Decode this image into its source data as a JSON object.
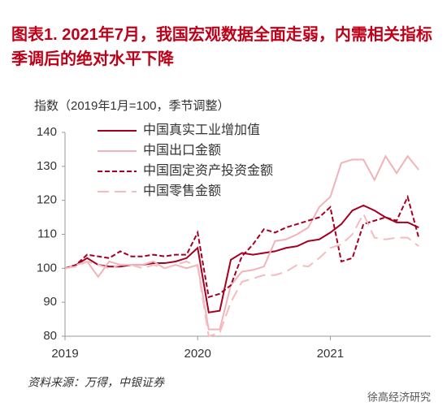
{
  "chart_data": {
    "type": "line",
    "title": "图表1.  2021年7月，我国宏观数据全面走弱，内需相关指标季调后的绝对水平下降",
    "subtitle": "指数（2019年1月=100，季节调整）",
    "source": "资料来源：万得，中银证券",
    "watermark": "徐高经济研究",
    "categories": [
      "2019",
      null,
      null,
      null,
      null,
      null,
      null,
      null,
      null,
      null,
      null,
      null,
      "2020",
      null,
      null,
      null,
      null,
      null,
      null,
      null,
      null,
      null,
      null,
      null,
      "2021",
      null,
      null,
      null,
      null,
      null,
      null,
      null,
      null
    ],
    "series": [
      {
        "name": "中国真实工业增加值",
        "color": "#a50021",
        "linestyle": "solid",
        "values": [
          100,
          101,
          103,
          101,
          100.5,
          100.5,
          101,
          101,
          101.5,
          101.5,
          102,
          103,
          106,
          87,
          87.5,
          102.5,
          104.5,
          104,
          104.5,
          105,
          106,
          106.5,
          108,
          108.5,
          110.5,
          113,
          117,
          118.5,
          117,
          115,
          113.5,
          113.5,
          112
        ]
      },
      {
        "name": "中国出口金额",
        "color": "#f0b3b8",
        "linestyle": "solid",
        "values": [
          100,
          101,
          102,
          97.5,
          102,
          101,
          101,
          101,
          102,
          100,
          101,
          100,
          101,
          82,
          82,
          95,
          99,
          99.5,
          100.5,
          108,
          108.5,
          110,
          112,
          118,
          121,
          131,
          132,
          132,
          126,
          133,
          128,
          133,
          129
        ]
      },
      {
        "name": "中国固定资产投资金额",
        "color": "#a50021",
        "linestyle": "dashed",
        "values": [
          100,
          101,
          104,
          103.5,
          103,
          105,
          103.5,
          103.5,
          104,
          103.5,
          104,
          104,
          110.5,
          91.5,
          92.5,
          95,
          103.5,
          107,
          111.5,
          110.5,
          112,
          113,
          114,
          115,
          118,
          102,
          103,
          113,
          114,
          115,
          114,
          121,
          109
        ]
      },
      {
        "name": "中国零售金额",
        "color": "#f5bcc0",
        "linestyle": "long-dashed",
        "values": [
          100,
          100.5,
          102,
          101,
          100,
          101,
          101,
          100,
          101,
          100,
          101,
          102,
          100.5,
          80,
          81,
          90,
          96,
          97,
          98,
          98,
          99,
          101,
          100.5,
          103,
          106,
          107,
          110,
          116,
          109,
          108.5,
          109,
          109,
          106.5
        ]
      }
    ],
    "ylim": [
      80,
      140
    ],
    "yticks": [
      80,
      90,
      100,
      110,
      120,
      130,
      140
    ],
    "grid": false,
    "legend": "upper-left"
  }
}
